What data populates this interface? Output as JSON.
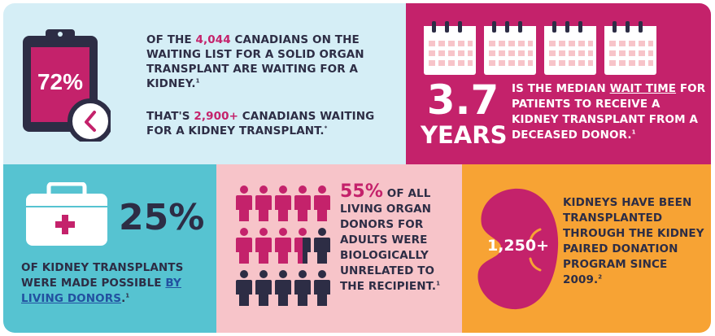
{
  "panel1": {
    "stat": "72%",
    "line1_pre": "OF THE ",
    "line1_num": "4,044",
    "line1_post": " CANADIANS ON THE WAITING LIST FOR A SOLID ORGAN TRANSPLANT ARE WAITING FOR A KIDNEY.",
    "line1_sup": "1",
    "line2_pre": "THAT'S ",
    "line2_num": "2,900+",
    "line2_post": " CANADIANS WAITING FOR A KIDNEY TRANSPLANT.",
    "line2_sup": "*"
  },
  "panel2": {
    "big": "3.7",
    "unit": "YEARS",
    "text_pre": "IS THE MEDIAN ",
    "text_link": "WAIT TIME",
    "text_post": " FOR PATIENTS TO RECEIVE A KIDNEY TRANSPLANT FROM A DECEASED DONOR.",
    "sup": "1"
  },
  "panel3": {
    "stat": "25%",
    "text_pre": "OF KIDNEY TRANSPLANTS WERE MADE POSSIBLE ",
    "text_link": "BY LIVING DONORS",
    "text_post": ".",
    "sup": "1"
  },
  "panel4": {
    "stat": "55%",
    "text": " OF ALL LIVING ORGAN DONORS FOR ADULTS WERE BIOLOGICALLY UNRELATED TO THE RECIPIENT.",
    "sup": "1"
  },
  "panel5": {
    "stat": "1,250+",
    "text": "KIDNEYS HAVE BEEN TRANSPLANTED THROUGH THE KIDNEY PAIRED DONATION PROGRAM SINCE 2009.",
    "sup": "2"
  },
  "colors": {
    "pink": "#c4226b",
    "navy": "#2d2d45",
    "light_blue": "#d5eef6",
    "teal": "#56c3d1",
    "light_pink": "#f7c4c9",
    "orange": "#f7a334"
  },
  "icons": [
    "clipboard-icon",
    "clock-icon",
    "calendar-icon",
    "cooler-icon",
    "person-icon",
    "kidney-icon"
  ]
}
